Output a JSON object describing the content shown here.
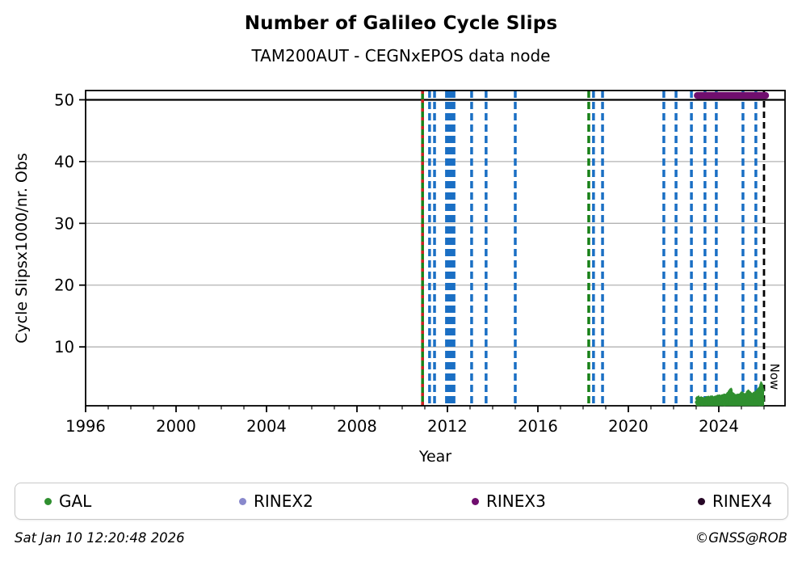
{
  "header": {
    "title": "Number of Galileo Cycle Slips",
    "subtitle": "TAM200AUT - CEGNxEPOS data node"
  },
  "footer": {
    "timestamp": "Sat Jan 10 12:20:48 2026",
    "credit": "©GNSS@ROB"
  },
  "legend": {
    "position": "bottom",
    "items": [
      {
        "label": "GAL",
        "color": "#2f8f2f"
      },
      {
        "label": "RINEX2",
        "color": "#8888cc"
      },
      {
        "label": "RINEX3",
        "color": "#700e6e"
      },
      {
        "label": "RINEX4",
        "color": "#260726"
      }
    ]
  },
  "chart_data": {
    "type": "scatter",
    "title": "Number of Galileo Cycle Slips",
    "subtitle": "TAM200AUT - CEGNxEPOS data node",
    "xlabel": "Year",
    "ylabel": "Cycle Slipsx1000/nr. Obs",
    "xlim": [
      1996,
      2026.93
    ],
    "ylim": [
      0.47,
      51.5
    ],
    "xticks_major": [
      1996,
      2000,
      2004,
      2008,
      2012,
      2016,
      2020,
      2024
    ],
    "xticks_minor_every_year": true,
    "yticks": [
      10,
      20,
      30,
      40,
      50
    ],
    "grid": {
      "show": true,
      "color": "#b3b3b3",
      "line50_color": "#000000"
    },
    "now_line": {
      "year": 2026.0,
      "label": "Now",
      "color": "#000000",
      "style": "dashed"
    },
    "event_lines": {
      "blue_dashed_years": [
        2011.21,
        2011.43,
        2011.96,
        2012.07,
        2012.18,
        2012.29,
        2013.07,
        2013.71,
        2015.0,
        2018.46,
        2018.86,
        2021.57,
        2022.11,
        2022.79,
        2023.39,
        2023.89,
        2025.07,
        2025.64
      ],
      "green_solid_with_red_dashes_year": 2010.9,
      "green_dashed_year": 2018.25,
      "blue_color": "#1a6fc4",
      "green_color": "#188018",
      "red_color": "#cc2222"
    },
    "series": [
      {
        "name": "GAL",
        "marker": "dot",
        "color": "#2f8f2f",
        "visible": true,
        "band": {
          "baseline": 0.55,
          "years": [
            2023.02,
            2023.08,
            2023.15,
            2023.25,
            2023.35,
            2023.5,
            2023.6,
            2023.7,
            2023.8,
            2023.9,
            2024.0,
            2024.1,
            2024.2,
            2024.35,
            2024.45,
            2024.55,
            2024.62,
            2024.75,
            2024.9,
            2025.0,
            2025.1,
            2025.2,
            2025.3,
            2025.4,
            2025.5,
            2025.6,
            2025.7,
            2025.8,
            2025.87,
            2025.93,
            2025.97
          ],
          "top": [
            1.6,
            1.9,
            1.6,
            1.7,
            1.5,
            1.8,
            1.7,
            1.9,
            1.7,
            1.9,
            2.0,
            1.9,
            2.1,
            2.2,
            2.8,
            3.1,
            2.4,
            2.1,
            2.2,
            2.5,
            2.3,
            2.2,
            2.8,
            2.4,
            2.3,
            2.5,
            2.8,
            3.3,
            4.2,
            3.7,
            3.0
          ]
        }
      },
      {
        "name": "RINEX2",
        "marker": "dot",
        "color": "#8888cc",
        "visible": false
      },
      {
        "name": "RINEX3",
        "marker": "dot",
        "color": "#700e6e",
        "visible": true,
        "segment": {
          "year_start": 2023.05,
          "year_end": 2026.07,
          "value": 50.7
        }
      },
      {
        "name": "RINEX4",
        "marker": "dot",
        "color": "#260726",
        "visible": false
      }
    ]
  }
}
